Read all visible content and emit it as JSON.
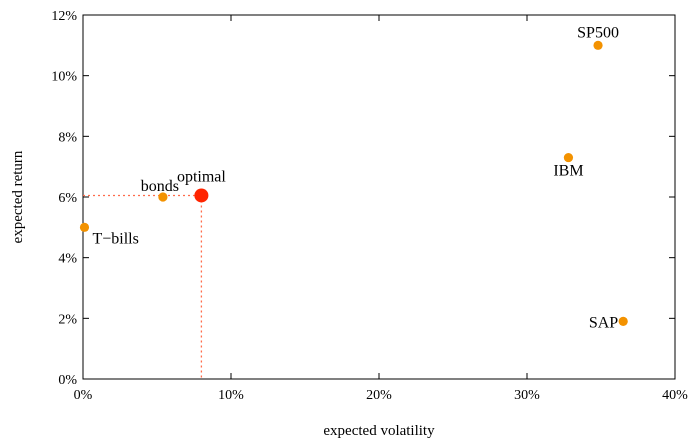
{
  "chart_data": {
    "type": "scatter",
    "xlabel": "expected volatility",
    "ylabel": "expected return",
    "xlim": [
      0,
      40
    ],
    "ylim": [
      0,
      12
    ],
    "x_ticks": [
      0,
      10,
      20,
      30,
      40
    ],
    "y_ticks": [
      0,
      2,
      4,
      6,
      8,
      10,
      12
    ],
    "x_tick_labels": [
      "0%",
      "10%",
      "20%",
      "30%",
      "40%"
    ],
    "y_tick_labels": [
      "0%",
      "2%",
      "4%",
      "6%",
      "8%",
      "10%",
      "12%"
    ],
    "grid": false,
    "points": [
      {
        "label": "T−bills",
        "x": 0.1,
        "y": 5.0,
        "label_position": "right-below"
      },
      {
        "label": "bonds",
        "x": 5.4,
        "y": 6.0,
        "label_position": "left-above"
      },
      {
        "label": "IBM",
        "x": 32.8,
        "y": 7.3,
        "label_position": "below"
      },
      {
        "label": "SP500",
        "x": 34.8,
        "y": 11.0,
        "label_position": "above"
      },
      {
        "label": "SAP",
        "x": 36.5,
        "y": 1.9,
        "label_position": "left"
      }
    ],
    "optimal": {
      "label": "optimal",
      "x": 8.0,
      "y": 6.05
    },
    "colors": {
      "point": "#f39200",
      "optimal": "#ff2400",
      "guide": "#ff6b4a",
      "axis": "#000000"
    }
  }
}
